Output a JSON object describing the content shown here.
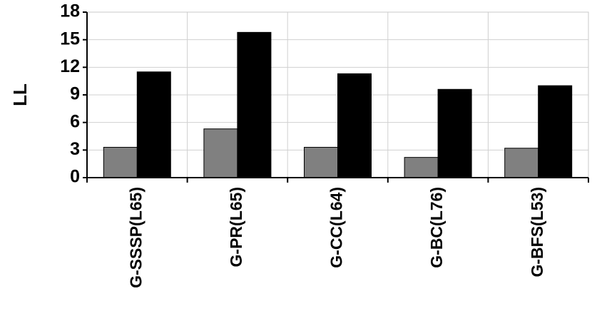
{
  "chart_data": {
    "type": "bar",
    "y_label": "LL",
    "categories": [
      "G-SSSP(L65)",
      "G-PR(L65)",
      "G-CC(L64)",
      "G-BC(L76)",
      "G-BFS(L53)"
    ],
    "series": [
      {
        "color": "#808080",
        "values": [
          3.3,
          5.3,
          3.3,
          2.2,
          3.2
        ]
      },
      {
        "color": "#000000",
        "values": [
          11.5,
          15.8,
          11.3,
          9.6,
          10.0
        ]
      }
    ],
    "ylim": [
      0,
      18
    ],
    "yticks": [
      0,
      3,
      6,
      9,
      12,
      15,
      18
    ],
    "grid": true
  }
}
